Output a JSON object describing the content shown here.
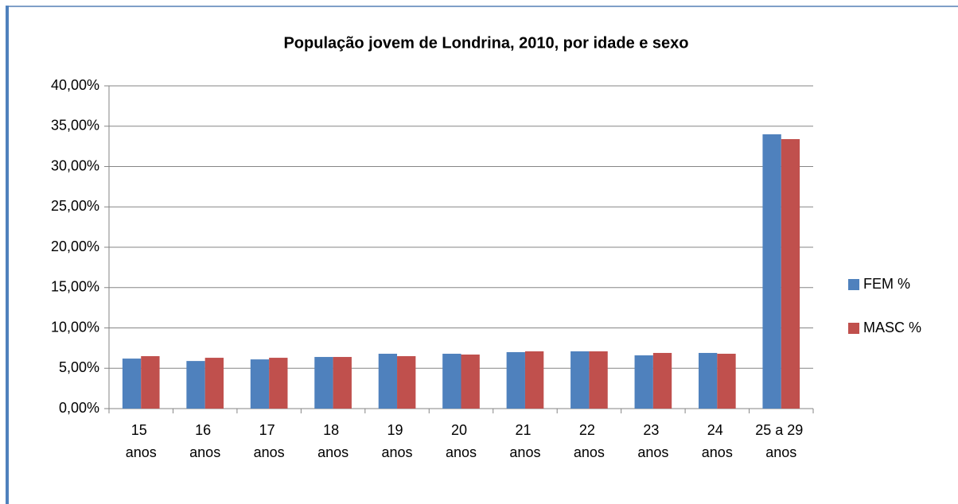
{
  "chart_data": {
    "type": "bar",
    "title": "População jovem de Londrina, 2010, por idade e sexo",
    "categories": [
      "15 anos",
      "16 anos",
      "17 anos",
      "18 anos",
      "19 anos",
      "20 anos",
      "21 anos",
      "22 anos",
      "23 anos",
      "24 anos",
      "25 a 29 anos"
    ],
    "series": [
      {
        "name": "FEM %",
        "color": "#4f81bd",
        "values": [
          6.2,
          5.9,
          6.1,
          6.4,
          6.8,
          6.8,
          7.0,
          7.1,
          6.6,
          6.9,
          34.0
        ]
      },
      {
        "name": "MASC %",
        "color": "#c0504d",
        "values": [
          6.5,
          6.3,
          6.3,
          6.4,
          6.5,
          6.7,
          7.1,
          7.1,
          6.9,
          6.8,
          33.4
        ]
      }
    ],
    "ylim": [
      0,
      40
    ],
    "yticks": [
      {
        "value": 0,
        "label": "0,00%"
      },
      {
        "value": 5,
        "label": "5,00%"
      },
      {
        "value": 10,
        "label": "10,00%"
      },
      {
        "value": 15,
        "label": "15,00%"
      },
      {
        "value": 20,
        "label": "20,00%"
      },
      {
        "value": 25,
        "label": "25,00%"
      },
      {
        "value": 30,
        "label": "30,00%"
      },
      {
        "value": 35,
        "label": "35,00%"
      },
      {
        "value": 40,
        "label": "40,00%"
      }
    ],
    "grid": true,
    "legend": "right"
  }
}
